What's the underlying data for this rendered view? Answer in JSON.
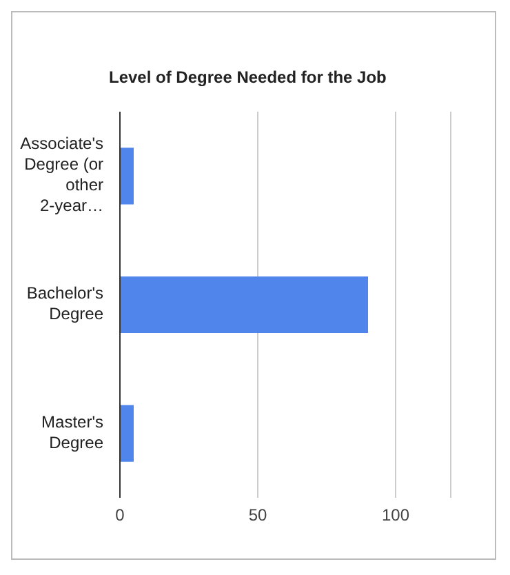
{
  "chart_data": {
    "type": "bar",
    "orientation": "horizontal",
    "title": "Level of Degree Needed for the Job",
    "categories": [
      "Associate's Degree (or other 2-year…",
      "Bachelor's Degree",
      "Master's Degree"
    ],
    "values": [
      5,
      90,
      5
    ],
    "color": "#5086ec",
    "xlim": [
      0,
      120
    ],
    "xticks": [
      0,
      50,
      100
    ],
    "grid": "x"
  }
}
